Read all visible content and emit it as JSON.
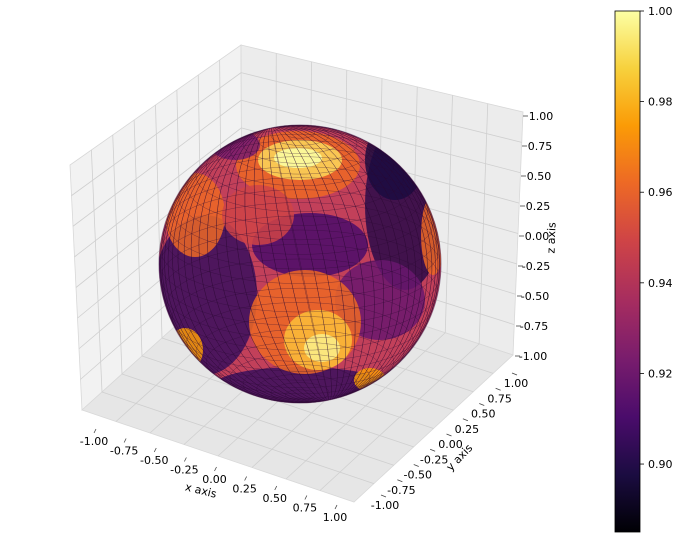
{
  "chart_data": {
    "type": "surface",
    "surface": "unit sphere",
    "xlabel": "x axis",
    "ylabel": "y axis",
    "zlabel": "z axis",
    "xlim": [
      -1.0,
      1.0
    ],
    "ylim": [
      -1.0,
      1.0
    ],
    "zlim": [
      -1.0,
      1.0
    ],
    "x_ticks": [
      "-1.00",
      "-0.75",
      "-0.50",
      "-0.25",
      "0.00",
      "0.25",
      "0.50",
      "0.75",
      "1.00"
    ],
    "y_ticks": [
      "-1.00",
      "-0.75",
      "-0.50",
      "-0.25",
      "0.00",
      "0.25",
      "0.50",
      "0.75",
      "1.00"
    ],
    "z_ticks": [
      "-1.00",
      "-0.75",
      "-0.50",
      "-0.25",
      "0.00",
      "0.25",
      "0.50",
      "0.75",
      "1.00"
    ],
    "colormap": "inferno",
    "colorbar": {
      "min": 0.885,
      "max": 1.0,
      "ticks": [
        "0.90",
        "0.92",
        "0.94",
        "0.96",
        "0.98",
        "1.00"
      ],
      "tick_values": [
        0.9,
        0.92,
        0.94,
        0.96,
        0.98,
        1.0
      ]
    },
    "grid": true
  }
}
